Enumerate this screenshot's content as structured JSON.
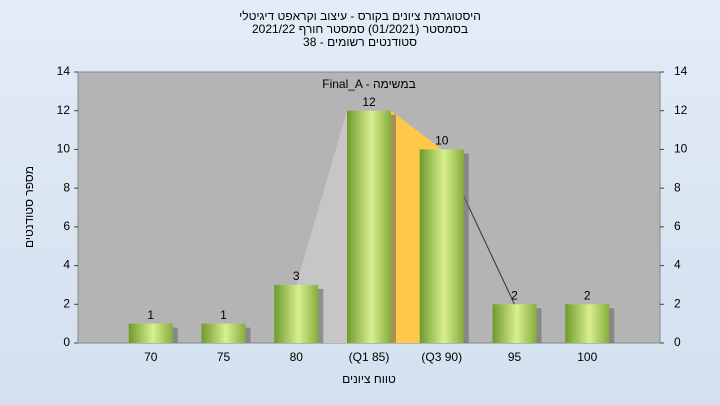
{
  "chart_data": {
    "type": "bar",
    "title": "היסטוגרמת ציונים בקורס - עיצוב וקראפט דיגיטלי",
    "subtitle": "בסמסטר  (01/2021)  סמסטר חורף 2021/22",
    "subtitle2": "סטודנטים רשומים - 38",
    "annotation": "Final_A - במשימה",
    "x_label": "טווח ציונים",
    "y_label": "מספר סטודנטים",
    "categories": [
      "70",
      "75",
      "80",
      "(Q1 85)",
      "(Q3 90)",
      "95",
      "100"
    ],
    "values": [
      1,
      1,
      3,
      12,
      10,
      2,
      2
    ],
    "ylim": [
      0,
      14
    ],
    "yticks": [
      0,
      2,
      4,
      6,
      8,
      10,
      12,
      14
    ],
    "y2lim": [
      0,
      14
    ],
    "y2ticks": [
      0,
      2,
      4,
      6,
      8,
      10,
      12,
      14
    ],
    "grid": false
  }
}
